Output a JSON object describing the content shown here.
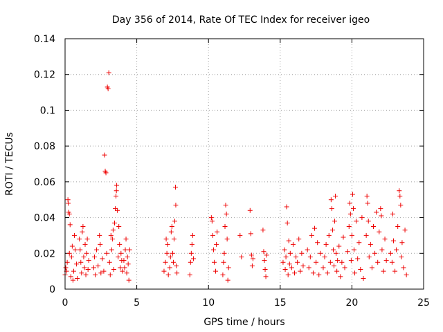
{
  "chart_data": {
    "type": "scatter",
    "title": "Day 356 of 2014, Rate Of TEC Index for receiver igeo",
    "xlabel": "GPS time / hours",
    "ylabel": "ROTI / TECUs",
    "xlim": [
      0,
      25
    ],
    "ylim": [
      0,
      0.14
    ],
    "xticks": [
      0,
      5,
      10,
      15,
      20,
      25
    ],
    "xtick_labels": [
      "0",
      "5",
      "10",
      "15",
      "20",
      "25"
    ],
    "yticks": [
      0,
      0.02,
      0.04,
      0.06,
      0.08,
      0.1,
      0.12,
      0.14
    ],
    "ytick_labels": [
      "0",
      "0.02",
      "0.04",
      "0.06",
      "0.08",
      "0.1",
      "0.12",
      "0.14"
    ],
    "grid": true,
    "marker": "+",
    "color": "#ee0000",
    "series": [
      {
        "name": "ROTI",
        "points": [
          [
            0.0,
            0.008
          ],
          [
            0.05,
            0.012
          ],
          [
            0.1,
            0.01
          ],
          [
            0.15,
            0.015
          ],
          [
            0.2,
            0.05
          ],
          [
            0.22,
            0.048
          ],
          [
            0.25,
            0.043
          ],
          [
            0.3,
            0.042
          ],
          [
            0.3,
            0.02
          ],
          [
            0.35,
            0.036
          ],
          [
            0.4,
            0.007
          ],
          [
            0.45,
            0.018
          ],
          [
            0.5,
            0.024
          ],
          [
            0.55,
            0.005
          ],
          [
            0.6,
            0.01
          ],
          [
            0.65,
            0.03
          ],
          [
            0.7,
            0.022
          ],
          [
            0.8,
            0.014
          ],
          [
            0.85,
            0.006
          ],
          [
            1.0,
            0.028
          ],
          [
            1.05,
            0.022
          ],
          [
            1.1,
            0.015
          ],
          [
            1.15,
            0.009
          ],
          [
            1.2,
            0.032
          ],
          [
            1.25,
            0.035
          ],
          [
            1.3,
            0.018
          ],
          [
            1.35,
            0.012
          ],
          [
            1.4,
            0.025
          ],
          [
            1.45,
            0.008
          ],
          [
            1.5,
            0.02
          ],
          [
            1.55,
            0.028
          ],
          [
            1.6,
            0.011
          ],
          [
            1.65,
            0.016
          ],
          [
            2.0,
            0.012
          ],
          [
            2.05,
            0.018
          ],
          [
            2.1,
            0.008
          ],
          [
            2.2,
            0.022
          ],
          [
            2.3,
            0.013
          ],
          [
            2.4,
            0.03
          ],
          [
            2.45,
            0.025
          ],
          [
            2.5,
            0.009
          ],
          [
            2.6,
            0.017
          ],
          [
            2.7,
            0.01
          ],
          [
            2.75,
            0.075
          ],
          [
            2.8,
            0.066
          ],
          [
            2.85,
            0.065
          ],
          [
            2.9,
            0.02
          ],
          [
            2.95,
            0.113
          ],
          [
            3.0,
            0.112
          ],
          [
            3.05,
            0.121
          ],
          [
            3.1,
            0.015
          ],
          [
            3.15,
            0.008
          ],
          [
            3.2,
            0.03
          ],
          [
            3.25,
            0.022
          ],
          [
            3.3,
            0.028
          ],
          [
            3.35,
            0.033
          ],
          [
            3.4,
            0.011
          ],
          [
            3.45,
            0.037
          ],
          [
            3.5,
            0.045
          ],
          [
            3.55,
            0.052
          ],
          [
            3.58,
            0.055
          ],
          [
            3.6,
            0.058
          ],
          [
            3.65,
            0.044
          ],
          [
            3.7,
            0.018
          ],
          [
            3.75,
            0.035
          ],
          [
            3.8,
            0.025
          ],
          [
            3.85,
            0.012
          ],
          [
            3.9,
            0.02
          ],
          [
            3.95,
            0.016
          ],
          [
            4.0,
            0.01
          ],
          [
            4.1,
            0.016
          ],
          [
            4.15,
            0.012
          ],
          [
            4.2,
            0.022
          ],
          [
            4.25,
            0.028
          ],
          [
            4.3,
            0.009
          ],
          [
            4.35,
            0.018
          ],
          [
            4.4,
            0.014
          ],
          [
            4.45,
            0.005
          ],
          [
            4.5,
            0.022
          ],
          [
            6.9,
            0.01
          ],
          [
            7.0,
            0.015
          ],
          [
            7.05,
            0.028
          ],
          [
            7.1,
            0.02
          ],
          [
            7.15,
            0.025
          ],
          [
            7.2,
            0.008
          ],
          [
            7.3,
            0.012
          ],
          [
            7.35,
            0.018
          ],
          [
            7.4,
            0.032
          ],
          [
            7.45,
            0.035
          ],
          [
            7.5,
            0.02
          ],
          [
            7.55,
            0.015
          ],
          [
            7.6,
            0.028
          ],
          [
            7.65,
            0.038
          ],
          [
            7.7,
            0.057
          ],
          [
            7.72,
            0.047
          ],
          [
            7.75,
            0.013
          ],
          [
            7.8,
            0.009
          ],
          [
            8.7,
            0.008
          ],
          [
            8.75,
            0.015
          ],
          [
            8.8,
            0.02
          ],
          [
            8.85,
            0.025
          ],
          [
            8.9,
            0.03
          ],
          [
            8.95,
            0.017
          ],
          [
            10.2,
            0.04
          ],
          [
            10.25,
            0.038
          ],
          [
            10.3,
            0.03
          ],
          [
            10.35,
            0.022
          ],
          [
            10.4,
            0.015
          ],
          [
            10.5,
            0.01
          ],
          [
            10.55,
            0.025
          ],
          [
            10.6,
            0.032
          ],
          [
            11.0,
            0.008
          ],
          [
            11.05,
            0.015
          ],
          [
            11.1,
            0.02
          ],
          [
            11.15,
            0.035
          ],
          [
            11.2,
            0.047
          ],
          [
            11.25,
            0.042
          ],
          [
            11.3,
            0.028
          ],
          [
            11.35,
            0.005
          ],
          [
            11.4,
            0.012
          ],
          [
            12.2,
            0.03
          ],
          [
            12.3,
            0.018
          ],
          [
            12.9,
            0.044
          ],
          [
            12.95,
            0.031
          ],
          [
            13.0,
            0.019
          ],
          [
            13.05,
            0.013
          ],
          [
            13.1,
            0.017
          ],
          [
            13.8,
            0.033
          ],
          [
            13.85,
            0.021
          ],
          [
            13.9,
            0.016
          ],
          [
            13.95,
            0.011
          ],
          [
            14.0,
            0.007
          ],
          [
            14.05,
            0.019
          ],
          [
            15.2,
            0.015
          ],
          [
            15.3,
            0.022
          ],
          [
            15.35,
            0.011
          ],
          [
            15.4,
            0.018
          ],
          [
            15.45,
            0.046
          ],
          [
            15.5,
            0.037
          ],
          [
            15.55,
            0.008
          ],
          [
            15.6,
            0.027
          ],
          [
            15.65,
            0.014
          ],
          [
            15.7,
            0.02
          ],
          [
            15.8,
            0.012
          ],
          [
            15.9,
            0.025
          ],
          [
            16.0,
            0.009
          ],
          [
            16.1,
            0.018
          ],
          [
            16.2,
            0.015
          ],
          [
            16.3,
            0.028
          ],
          [
            16.4,
            0.01
          ],
          [
            16.5,
            0.02
          ],
          [
            16.6,
            0.013
          ],
          [
            16.9,
            0.022
          ],
          [
            17.0,
            0.012
          ],
          [
            17.1,
            0.018
          ],
          [
            17.2,
            0.03
          ],
          [
            17.3,
            0.009
          ],
          [
            17.4,
            0.034
          ],
          [
            17.5,
            0.015
          ],
          [
            17.6,
            0.026
          ],
          [
            17.7,
            0.008
          ],
          [
            17.8,
            0.02
          ],
          [
            18.0,
            0.012
          ],
          [
            18.1,
            0.018
          ],
          [
            18.2,
            0.025
          ],
          [
            18.3,
            0.009
          ],
          [
            18.4,
            0.03
          ],
          [
            18.5,
            0.015
          ],
          [
            18.55,
            0.05
          ],
          [
            18.6,
            0.045
          ],
          [
            18.65,
            0.033
          ],
          [
            18.7,
            0.022
          ],
          [
            18.75,
            0.013
          ],
          [
            18.8,
            0.038
          ],
          [
            18.85,
            0.052
          ],
          [
            18.9,
            0.02
          ],
          [
            18.95,
            0.01
          ],
          [
            19.0,
            0.016
          ],
          [
            19.1,
            0.024
          ],
          [
            19.2,
            0.007
          ],
          [
            19.3,
            0.015
          ],
          [
            19.4,
            0.029
          ],
          [
            19.5,
            0.012
          ],
          [
            19.7,
            0.021
          ],
          [
            19.8,
            0.035
          ],
          [
            19.85,
            0.048
          ],
          [
            19.9,
            0.042
          ],
          [
            19.95,
            0.016
          ],
          [
            20.0,
            0.03
          ],
          [
            20.05,
            0.053
          ],
          [
            20.1,
            0.045
          ],
          [
            20.15,
            0.022
          ],
          [
            20.2,
            0.009
          ],
          [
            20.3,
            0.038
          ],
          [
            20.4,
            0.017
          ],
          [
            20.5,
            0.026
          ],
          [
            20.6,
            0.011
          ],
          [
            20.7,
            0.04
          ],
          [
            20.8,
            0.006
          ],
          [
            21.0,
            0.03
          ],
          [
            21.05,
            0.052
          ],
          [
            21.1,
            0.048
          ],
          [
            21.15,
            0.038
          ],
          [
            21.2,
            0.018
          ],
          [
            21.3,
            0.025
          ],
          [
            21.4,
            0.012
          ],
          [
            21.5,
            0.035
          ],
          [
            21.6,
            0.02
          ],
          [
            21.7,
            0.043
          ],
          [
            21.8,
            0.015
          ],
          [
            21.9,
            0.032
          ],
          [
            22.0,
            0.045
          ],
          [
            22.05,
            0.041
          ],
          [
            22.1,
            0.022
          ],
          [
            22.2,
            0.01
          ],
          [
            22.3,
            0.028
          ],
          [
            22.4,
            0.016
          ],
          [
            22.7,
            0.02
          ],
          [
            22.8,
            0.015
          ],
          [
            22.85,
            0.042
          ],
          [
            22.9,
            0.027
          ],
          [
            23.0,
            0.01
          ],
          [
            23.1,
            0.022
          ],
          [
            23.2,
            0.035
          ],
          [
            23.3,
            0.055
          ],
          [
            23.35,
            0.052
          ],
          [
            23.4,
            0.047
          ],
          [
            23.45,
            0.018
          ],
          [
            23.5,
            0.026
          ],
          [
            23.6,
            0.012
          ],
          [
            23.7,
            0.033
          ],
          [
            23.8,
            0.008
          ]
        ]
      }
    ]
  }
}
